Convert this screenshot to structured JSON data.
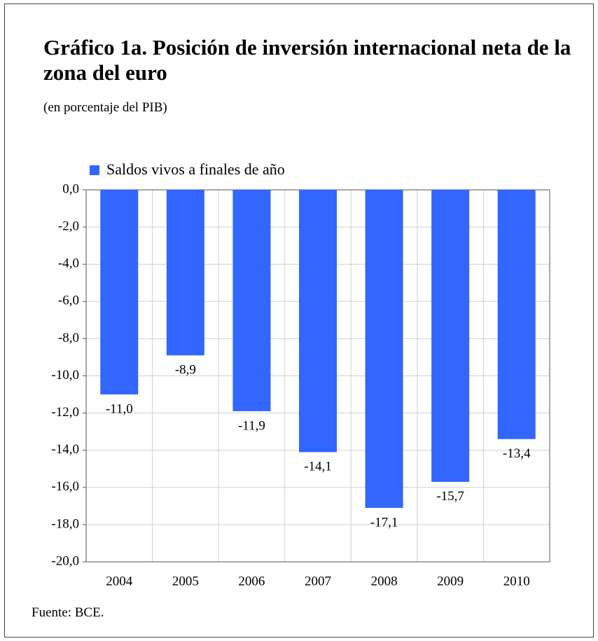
{
  "chart_data": {
    "type": "bar",
    "title": "Gráfico 1a. Posición de inversión internacional neta de la zona del euro",
    "subtitle": "(en porcentaje del PIB)",
    "source": "Fuente: BCE.",
    "categories": [
      "2004",
      "2005",
      "2006",
      "2007",
      "2008",
      "2009",
      "2010"
    ],
    "series": [
      {
        "name": "Saldos vivos a finales de año",
        "color": "#3366ff",
        "values": [
          -11.0,
          -8.9,
          -11.9,
          -14.1,
          -17.1,
          -15.7,
          -13.4
        ],
        "value_labels": [
          "-11,0",
          "-8,9",
          "-11,9",
          "-14,1",
          "-17,1",
          "-15,7",
          "-13,4"
        ]
      }
    ],
    "ylim": [
      -20,
      0
    ],
    "yticks": [
      {
        "value": 0,
        "label": "0,0"
      },
      {
        "value": -2,
        "label": "-2,0"
      },
      {
        "value": -4,
        "label": "-4,0"
      },
      {
        "value": -6,
        "label": "-6,0"
      },
      {
        "value": -8,
        "label": "-8,0"
      },
      {
        "value": -10,
        "label": "-10,0"
      },
      {
        "value": -12,
        "label": "-12,0"
      },
      {
        "value": -14,
        "label": "-14,0"
      },
      {
        "value": -16,
        "label": "-16,0"
      },
      {
        "value": -18,
        "label": "-18,0"
      },
      {
        "value": -20,
        "label": "-20,0"
      }
    ],
    "grid": true
  }
}
